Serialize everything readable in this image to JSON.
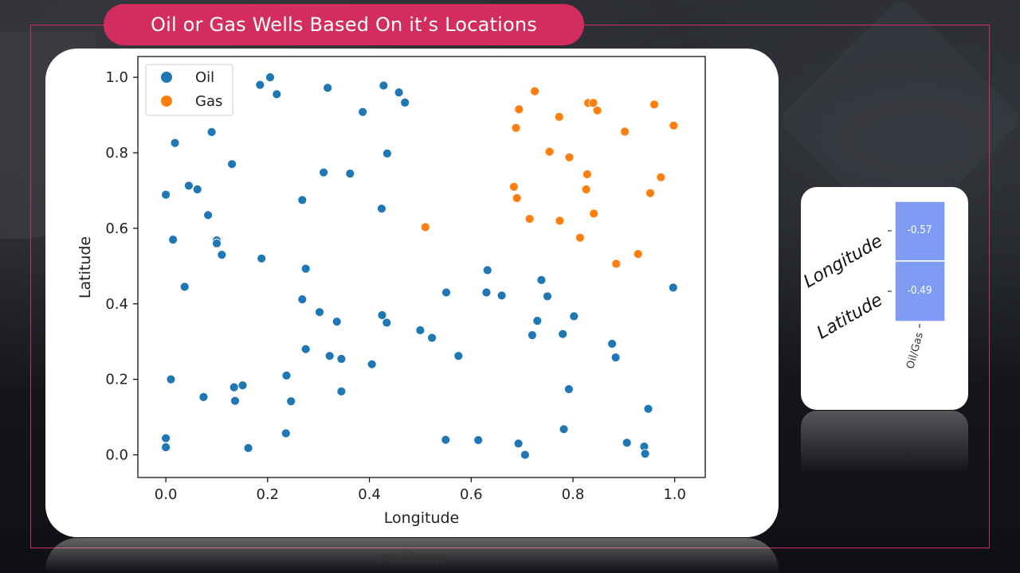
{
  "slide": {
    "title": "Oil or Gas Wells Based On it’s Locations"
  },
  "colors": {
    "accent": "#d32d5f",
    "frame": "#c9305f",
    "oil": "#1f77b4",
    "gas": "#ff7f0e",
    "heat": "#7f9cf5"
  },
  "chart_data": [
    {
      "type": "scatter",
      "xlabel": "Longitude",
      "ylabel": "Latitude",
      "xlim": [
        -0.055,
        1.06
      ],
      "ylim": [
        -0.06,
        1.055
      ],
      "xticks": [
        "0.0",
        "0.2",
        "0.4",
        "0.6",
        "0.8",
        "1.0"
      ],
      "yticks": [
        "0.0",
        "0.2",
        "0.4",
        "0.6",
        "0.8",
        "1.0"
      ],
      "grid": false,
      "legend": "top-left",
      "series": [
        {
          "name": "Oil",
          "points": [
            [
              0.205,
              1.0
            ],
            [
              0.185,
              0.98
            ],
            [
              0.218,
              0.955
            ],
            [
              0.318,
              0.972
            ],
            [
              0.428,
              0.978
            ],
            [
              0.458,
              0.96
            ],
            [
              0.47,
              0.933
            ],
            [
              0.387,
              0.908
            ],
            [
              0.09,
              0.855
            ],
            [
              0.018,
              0.826
            ],
            [
              0.435,
              0.798
            ],
            [
              0.13,
              0.77
            ],
            [
              0.31,
              0.748
            ],
            [
              0.362,
              0.745
            ],
            [
              0.045,
              0.713
            ],
            [
              0.062,
              0.703
            ],
            [
              0.0,
              0.689
            ],
            [
              0.268,
              0.675
            ],
            [
              0.424,
              0.652
            ],
            [
              0.083,
              0.635
            ],
            [
              0.014,
              0.57
            ],
            [
              0.1,
              0.568
            ],
            [
              0.1,
              0.56
            ],
            [
              0.11,
              0.53
            ],
            [
              0.188,
              0.52
            ],
            [
              0.275,
              0.493
            ],
            [
              0.632,
              0.489
            ],
            [
              0.738,
              0.463
            ],
            [
              0.037,
              0.445
            ],
            [
              0.997,
              0.443
            ],
            [
              0.551,
              0.43
            ],
            [
              0.63,
              0.43
            ],
            [
              0.66,
              0.422
            ],
            [
              0.75,
              0.42
            ],
            [
              0.268,
              0.412
            ],
            [
              0.302,
              0.378
            ],
            [
              0.425,
              0.37
            ],
            [
              0.802,
              0.367
            ],
            [
              0.336,
              0.353
            ],
            [
              0.434,
              0.35
            ],
            [
              0.73,
              0.355
            ],
            [
              0.5,
              0.33
            ],
            [
              0.72,
              0.317
            ],
            [
              0.78,
              0.32
            ],
            [
              0.523,
              0.31
            ],
            [
              0.877,
              0.294
            ],
            [
              0.275,
              0.28
            ],
            [
              0.322,
              0.262
            ],
            [
              0.345,
              0.254
            ],
            [
              0.575,
              0.262
            ],
            [
              0.884,
              0.258
            ],
            [
              0.405,
              0.24
            ],
            [
              0.237,
              0.21
            ],
            [
              0.01,
              0.2
            ],
            [
              0.151,
              0.184
            ],
            [
              0.134,
              0.179
            ],
            [
              0.792,
              0.174
            ],
            [
              0.345,
              0.168
            ],
            [
              0.074,
              0.153
            ],
            [
              0.136,
              0.143
            ],
            [
              0.246,
              0.142
            ],
            [
              0.948,
              0.122
            ],
            [
              0.782,
              0.068
            ],
            [
              0.236,
              0.057
            ],
            [
              0.0,
              0.044
            ],
            [
              0.55,
              0.04
            ],
            [
              0.614,
              0.039
            ],
            [
              0.693,
              0.03
            ],
            [
              0.906,
              0.032
            ],
            [
              0.0,
              0.02
            ],
            [
              0.162,
              0.018
            ],
            [
              0.94,
              0.022
            ],
            [
              0.706,
              0.0
            ],
            [
              0.942,
              0.003
            ]
          ]
        },
        {
          "name": "Gas",
          "points": [
            [
              0.725,
              0.963
            ],
            [
              0.83,
              0.932
            ],
            [
              0.84,
              0.932
            ],
            [
              0.96,
              0.928
            ],
            [
              0.694,
              0.915
            ],
            [
              0.848,
              0.912
            ],
            [
              0.773,
              0.895
            ],
            [
              0.998,
              0.872
            ],
            [
              0.688,
              0.866
            ],
            [
              0.902,
              0.856
            ],
            [
              0.754,
              0.803
            ],
            [
              0.793,
              0.788
            ],
            [
              0.828,
              0.743
            ],
            [
              0.973,
              0.735
            ],
            [
              0.684,
              0.71
            ],
            [
              0.826,
              0.703
            ],
            [
              0.952,
              0.693
            ],
            [
              0.69,
              0.68
            ],
            [
              0.715,
              0.625
            ],
            [
              0.774,
              0.62
            ],
            [
              0.841,
              0.639
            ],
            [
              0.51,
              0.603
            ],
            [
              0.814,
              0.575
            ],
            [
              0.928,
              0.532
            ],
            [
              0.885,
              0.506
            ]
          ]
        }
      ]
    },
    {
      "type": "heatmap",
      "rows": [
        "Longitude",
        "Latitude"
      ],
      "columns": [
        "Oil/Gas"
      ],
      "values": [
        [
          -0.57
        ],
        [
          -0.49
        ]
      ],
      "value_labels": [
        "-0.57",
        "-0.49"
      ]
    }
  ]
}
